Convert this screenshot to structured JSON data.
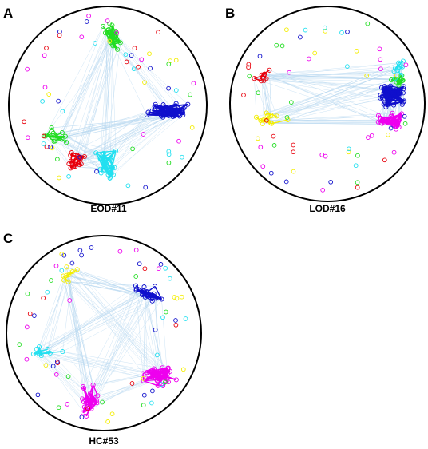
{
  "panels": [
    {
      "letter": "A",
      "caption": "EOD#11"
    },
    {
      "letter": "B",
      "caption": "LOD#16"
    },
    {
      "letter": "C",
      "caption": "HC#53"
    }
  ],
  "colors": {
    "red": "#e8000b",
    "green": "#22dd22",
    "blue": "#1010cc",
    "cyan": "#22e0f0",
    "yellow": "#f4ee00",
    "magenta": "#ee00ee",
    "link": "#b8d8f0",
    "circle": "#000000"
  }
}
